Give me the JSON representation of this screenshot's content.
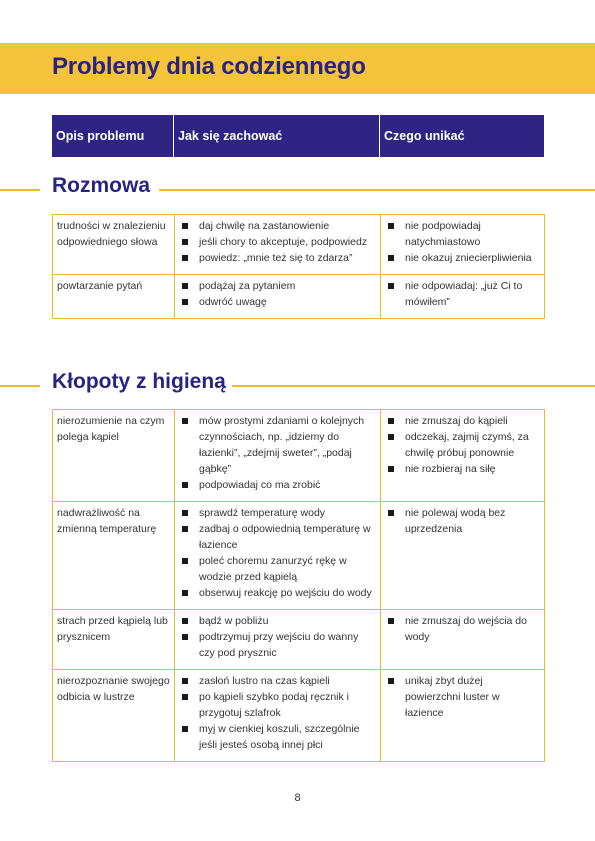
{
  "title": "Problemy dnia codziennego",
  "headers": [
    "Opis problemu",
    "Jak się zachować",
    "Czego unikać"
  ],
  "sections": [
    {
      "heading": "Rozmowa",
      "rows": [
        {
          "problem": "trudności w znalezieniu odpowiedniego słowa",
          "do": [
            "daj chwilę na zastanowienie",
            "jeśli chory to akceptuje, podpowiedz",
            "powiedz: „mnie też się to zdarza”"
          ],
          "avoid": [
            "nie podpowiadaj natychmiastowo",
            "nie okazuj zniecierpliwienia"
          ]
        },
        {
          "problem": "powtarzanie pytań",
          "do": [
            "podążaj za pytaniem",
            "odwróć uwagę"
          ],
          "avoid": [
            "nie odpowiadaj: „już Ci to mówiłem”"
          ]
        }
      ]
    },
    {
      "heading": "Kłopoty z higieną",
      "rows": [
        {
          "problem": "nierozumienie na czym polega kąpiel",
          "do": [
            "mów prostymi zdaniami o kolejnych czynnościach, np. „idziemy do łazienki”, „zdejmij sweter”, „podaj gąbkę”",
            "podpowiadaj co ma zrobić"
          ],
          "avoid": [
            "nie zmuszaj do kąpieli",
            "odczekaj, zajmij czymś, za chwilę próbuj ponownie",
            "nie rozbieraj na siłę"
          ]
        },
        {
          "problem": "nadwrażliwość na zmienną temperaturę",
          "do": [
            "sprawdź temperaturę wody",
            "zadbaj o odpowiednią temperaturę w łazience",
            "poleć choremu zanurzyć rękę w wodzie przed kąpielą",
            "obserwuj reakcję po wejściu do wody"
          ],
          "avoid": [
            "nie polewaj wodą bez uprzedzenia"
          ]
        },
        {
          "problem": "strach przed kąpielą lub prysznicem",
          "do": [
            "bądź w pobliżu",
            "podtrzymuj przy wejściu do wanny czy pod prysznic"
          ],
          "avoid": [
            "nie zmuszaj do wejścia do wody"
          ]
        },
        {
          "problem": "nierozpoznanie swojego odbicia w lustrze",
          "do": [
            "zasłoń lustro na czas kąpieli",
            "po kąpieli szybko podaj ręcznik i przygotuj szlafrok",
            "myj w cienkiej koszuli, szczególnie jeśli jesteś osobą innej płci"
          ],
          "avoid": [
            "unikaj zbyt dużej powierzchni luster w łazience"
          ]
        }
      ]
    }
  ],
  "page_number": "8"
}
